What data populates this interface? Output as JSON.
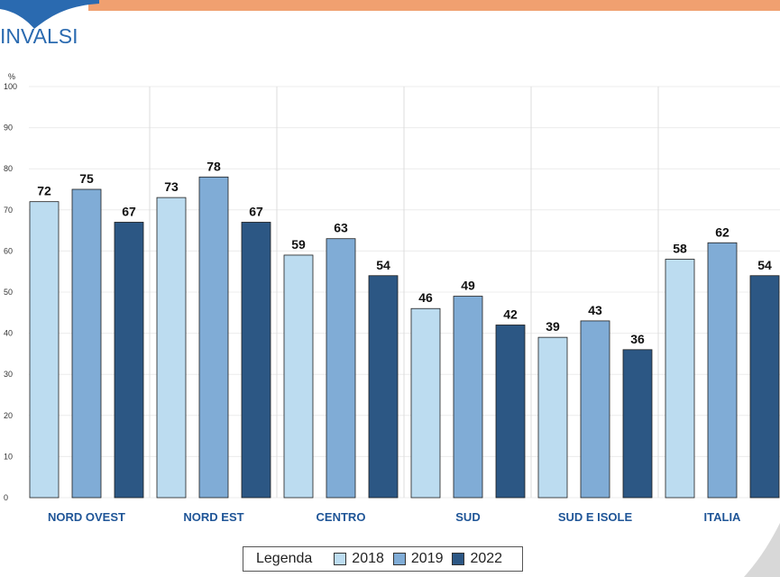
{
  "header": {
    "logo_text": "INVALSI",
    "bar_color": "#f0a070",
    "logo_color": "#2a6ab0"
  },
  "legend": {
    "title": "Legenda",
    "items": [
      {
        "label": "2018",
        "color": "#bcdcf0"
      },
      {
        "label": "2019",
        "color": "#80acd6"
      },
      {
        "label": "2022",
        "color": "#2c5784"
      }
    ]
  },
  "chart_data": {
    "type": "bar",
    "ylabel": "%",
    "ylim": [
      0,
      100
    ],
    "yticks": [
      0,
      10,
      20,
      30,
      40,
      50,
      60,
      70,
      80,
      90,
      100
    ],
    "grid": true,
    "categories": [
      "NORD OVEST",
      "NORD EST",
      "CENTRO",
      "SUD",
      "SUD E ISOLE",
      "ITALIA"
    ],
    "series": [
      {
        "name": "2018",
        "color": "#bcdcf0",
        "values": [
          72,
          73,
          59,
          46,
          39,
          58
        ],
        "labels": [
          "72",
          "73",
          "59",
          "46",
          "39",
          "58"
        ]
      },
      {
        "name": "2019",
        "color": "#80acd6",
        "values": [
          75,
          78,
          63,
          49,
          43,
          62
        ],
        "labels": [
          "75",
          "78",
          "63",
          "49",
          "43",
          "62"
        ]
      },
      {
        "name": "2022",
        "color": "#2c5784",
        "values": [
          67,
          67,
          54,
          42,
          36,
          54
        ],
        "labels": [
          "67",
          "67",
          "54",
          "42",
          "36",
          "54"
        ]
      }
    ]
  }
}
